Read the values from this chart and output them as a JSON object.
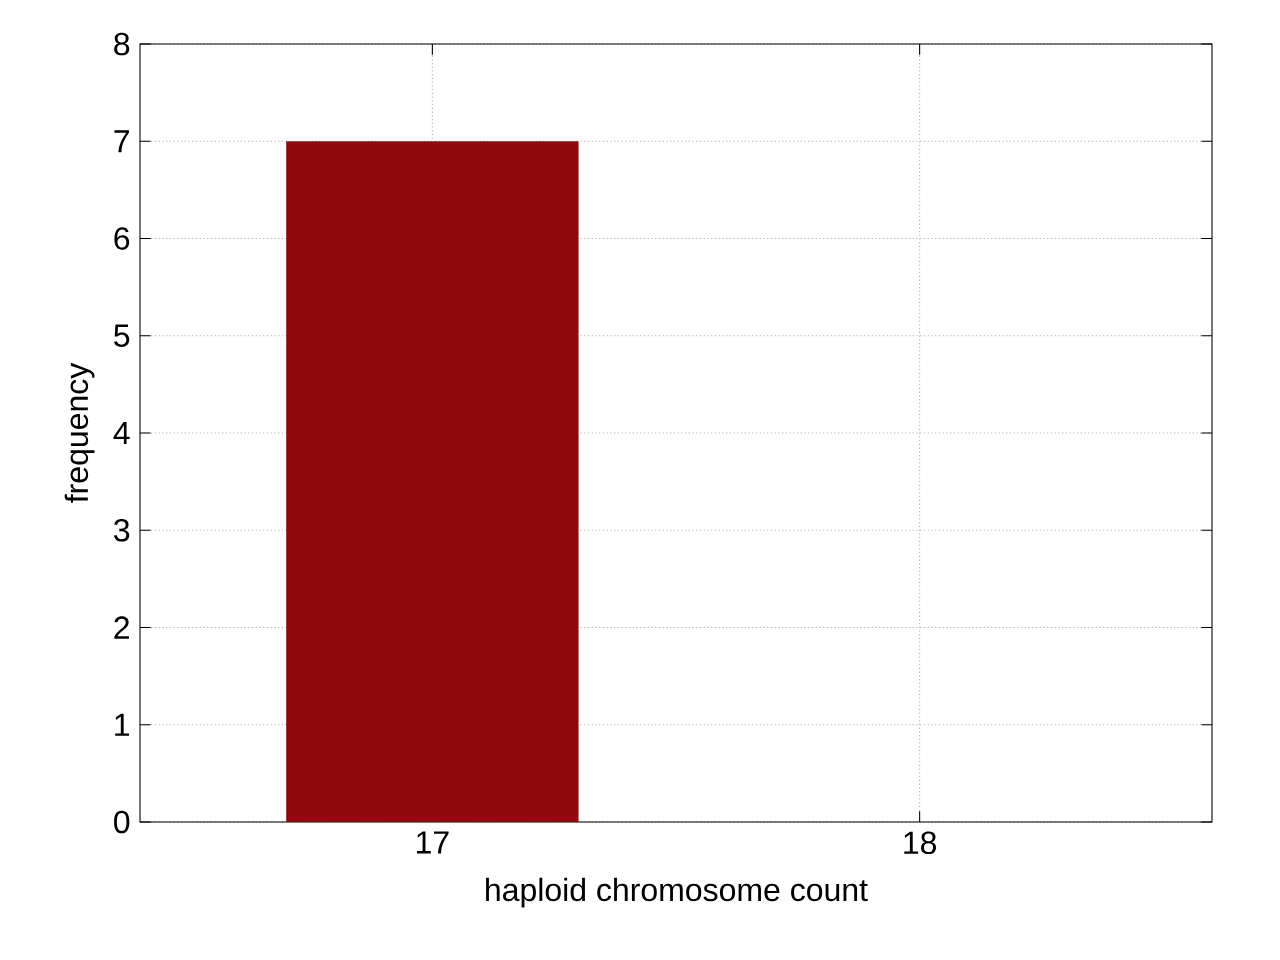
{
  "chart_data": {
    "type": "bar",
    "xlabel": "haploid chromosome count",
    "ylabel": "frequency",
    "categories": [
      "17",
      "18"
    ],
    "values": [
      7,
      0
    ],
    "color": "#8f0a0c",
    "ylim": [
      0,
      8
    ],
    "yticks": [
      0,
      1,
      2,
      3,
      4,
      5,
      6,
      7,
      8
    ],
    "grid": true
  }
}
